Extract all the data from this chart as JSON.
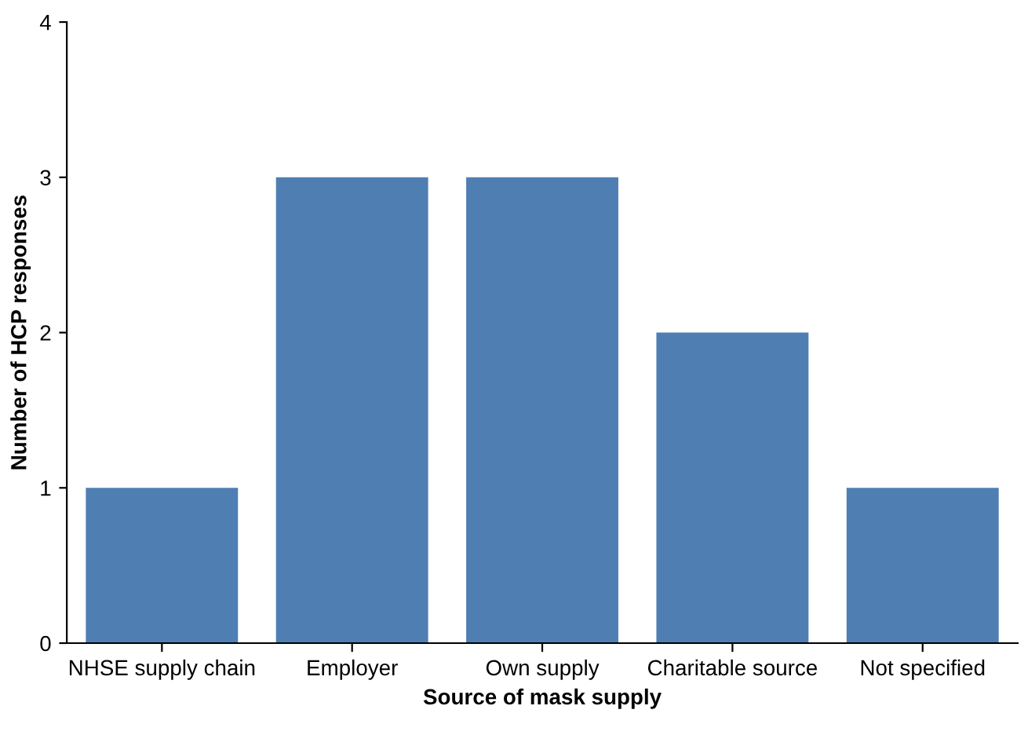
{
  "chart_data": {
    "type": "bar",
    "xlabel": "Source of mask supply",
    "ylabel": "Number of HCP responses",
    "categories": [
      "NHSE supply chain",
      "Employer",
      "Own supply",
      "Charitable source",
      "Not specified"
    ],
    "values": [
      1,
      3,
      3,
      2,
      1
    ],
    "color": "#4f7eb3",
    "ylim": [
      0,
      4
    ],
    "yticks": [
      0,
      1,
      2,
      3,
      4
    ],
    "grid": false,
    "legend": false
  }
}
